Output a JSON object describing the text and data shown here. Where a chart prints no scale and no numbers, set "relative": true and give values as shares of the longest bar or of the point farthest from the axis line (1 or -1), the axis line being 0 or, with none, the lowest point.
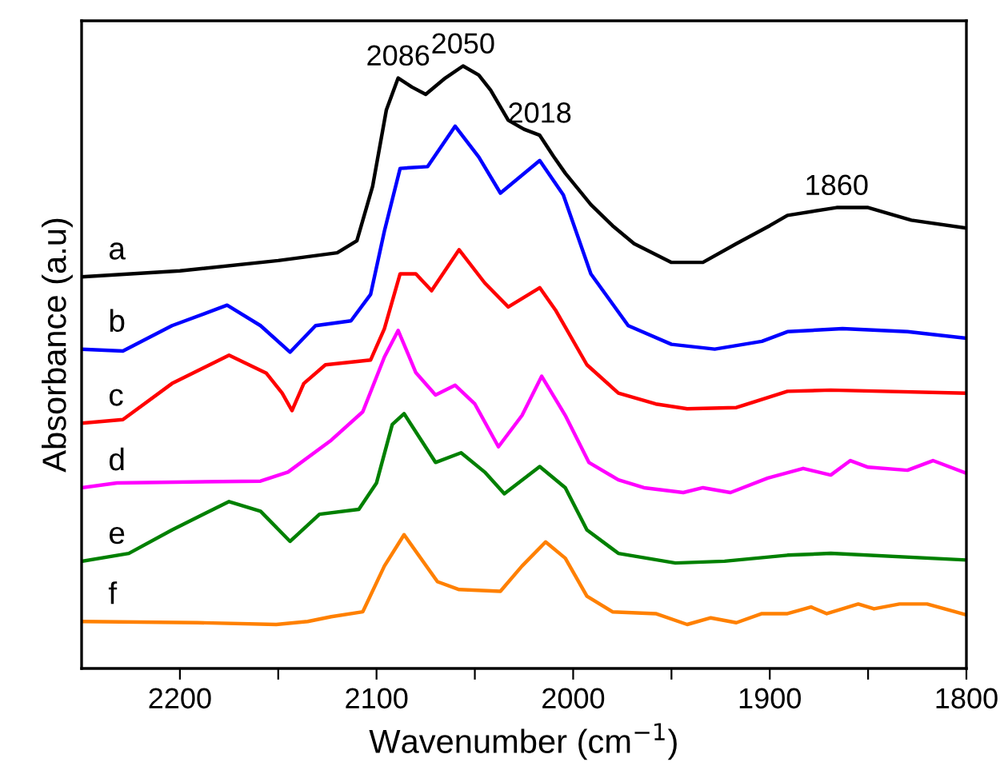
{
  "chart_data": {
    "type": "line",
    "relative": true,
    "xlabel": "Wavenumber (cm$^{−1}$)",
    "ylabel": "Absorbance (a.u)",
    "xlim": [
      2250,
      1800
    ],
    "xticks": [
      2200,
      {
        "value": 2150,
        "label": null
      },
      2100,
      {
        "value": 2050,
        "label": null
      },
      2000,
      {
        "value": 1950,
        "label": null
      },
      1900,
      {
        "value": 1850,
        "label": null
      },
      1800
    ],
    "grid": false,
    "legend": false,
    "marker": "none",
    "line_style": "solid",
    "annotations": [
      {
        "text": "2086",
        "x": 2089,
        "y": 0.98
      },
      {
        "text": "2050",
        "x": 2056,
        "y": 1.0
      },
      {
        "text": "2018",
        "x": 2017,
        "y": 0.885
      },
      {
        "text": "1860",
        "x": 1866,
        "y": 0.765
      }
    ],
    "series": [
      {
        "name": "a",
        "color": "#000000",
        "x": [
          2250,
          2200,
          2150,
          2120,
          2110,
          2102,
          2095,
          2089,
          2082,
          2075,
          2065,
          2056,
          2048,
          2042,
          2033,
          2025,
          2017,
          2010,
          2004,
          1991,
          1980,
          1969,
          1950,
          1934,
          1917,
          1900,
          1891,
          1866,
          1850,
          1828,
          1800
        ],
        "values": [
          0.65,
          0.66,
          0.677,
          0.69,
          0.71,
          0.8,
          0.927,
          0.98,
          0.965,
          0.953,
          0.98,
          1.0,
          0.985,
          0.96,
          0.91,
          0.895,
          0.885,
          0.85,
          0.822,
          0.77,
          0.735,
          0.705,
          0.674,
          0.674,
          0.705,
          0.735,
          0.752,
          0.765,
          0.765,
          0.744,
          0.731
        ]
      },
      {
        "name": "b",
        "color": "#0000ff",
        "x": [
          2250,
          2229,
          2204,
          2176,
          2159,
          2144,
          2131,
          2113,
          2103,
          2096,
          2088,
          2074,
          2060,
          2048,
          2037,
          2017,
          2005,
          1991,
          1972,
          1950,
          1928,
          1904,
          1891,
          1863,
          1830,
          1800
        ],
        "values": [
          0.53,
          0.527,
          0.569,
          0.603,
          0.569,
          0.525,
          0.569,
          0.577,
          0.621,
          0.726,
          0.83,
          0.833,
          0.9,
          0.849,
          0.789,
          0.843,
          0.786,
          0.655,
          0.569,
          0.538,
          0.53,
          0.543,
          0.559,
          0.564,
          0.559,
          0.548
        ]
      },
      {
        "name": "c",
        "color": "#ff0000",
        "x": [
          2250,
          2229,
          2204,
          2175,
          2156,
          2148,
          2143,
          2137,
          2126,
          2103,
          2096,
          2088,
          2080,
          2072,
          2058,
          2045,
          2033,
          2017,
          2009,
          1993,
          1977,
          1958,
          1942,
          1917,
          1891,
          1869,
          1800
        ],
        "values": [
          0.407,
          0.413,
          0.473,
          0.52,
          0.49,
          0.457,
          0.428,
          0.473,
          0.504,
          0.512,
          0.564,
          0.655,
          0.655,
          0.627,
          0.695,
          0.64,
          0.6,
          0.632,
          0.595,
          0.504,
          0.457,
          0.439,
          0.431,
          0.433,
          0.46,
          0.462,
          0.457
        ]
      },
      {
        "name": "d",
        "color": "#ff00ff",
        "x": [
          2250,
          2232,
          2159,
          2145,
          2123,
          2107,
          2096,
          2089,
          2080,
          2070,
          2060,
          2050,
          2038,
          2026,
          2016,
          2004,
          1992,
          1977,
          1964,
          1944,
          1934,
          1920,
          1901,
          1883,
          1869,
          1859,
          1850,
          1830,
          1817,
          1800
        ],
        "values": [
          0.3,
          0.308,
          0.311,
          0.326,
          0.379,
          0.426,
          0.517,
          0.561,
          0.491,
          0.454,
          0.47,
          0.439,
          0.368,
          0.42,
          0.485,
          0.42,
          0.342,
          0.313,
          0.3,
          0.292,
          0.3,
          0.292,
          0.316,
          0.332,
          0.321,
          0.345,
          0.334,
          0.329,
          0.345,
          0.324
        ]
      },
      {
        "name": "e",
        "color": "#008000",
        "x": [
          2250,
          2226,
          2204,
          2175,
          2159,
          2144,
          2129,
          2109,
          2100,
          2092,
          2086,
          2070,
          2057,
          2045,
          2035,
          2017,
          2004,
          1993,
          1977,
          1948,
          1923,
          1891,
          1869,
          1800
        ],
        "values": [
          0.178,
          0.191,
          0.23,
          0.277,
          0.261,
          0.211,
          0.256,
          0.264,
          0.308,
          0.405,
          0.423,
          0.342,
          0.358,
          0.326,
          0.29,
          0.335,
          0.3,
          0.23,
          0.191,
          0.175,
          0.178,
          0.188,
          0.191,
          0.18
        ]
      },
      {
        "name": "f",
        "color": "#ff8000",
        "x": [
          2250,
          2191,
          2151,
          2135,
          2123,
          2107,
          2096,
          2086,
          2069,
          2058,
          2037,
          2026,
          2014,
          2004,
          1993,
          1980,
          1958,
          1942,
          1930,
          1917,
          1904,
          1891,
          1879,
          1871,
          1855,
          1847,
          1834,
          1820,
          1800
        ],
        "values": [
          0.078,
          0.076,
          0.073,
          0.078,
          0.086,
          0.094,
          0.17,
          0.222,
          0.144,
          0.131,
          0.128,
          0.17,
          0.21,
          0.183,
          0.12,
          0.094,
          0.091,
          0.073,
          0.084,
          0.076,
          0.091,
          0.091,
          0.102,
          0.091,
          0.107,
          0.099,
          0.107,
          0.107,
          0.089
        ]
      }
    ]
  }
}
